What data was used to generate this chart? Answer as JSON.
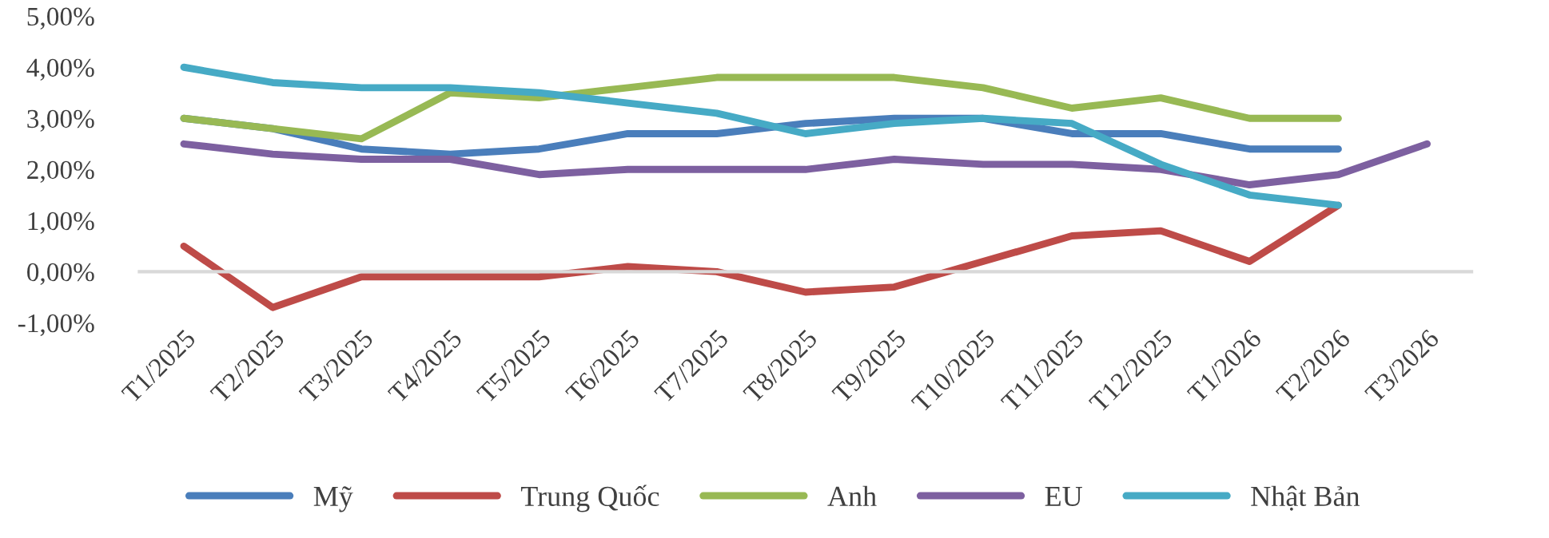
{
  "chart_data": {
    "type": "line",
    "categories": [
      "T1/2025",
      "T2/2025",
      "T3/2025",
      "T4/2025",
      "T5/2025",
      "T6/2025",
      "T7/2025",
      "T8/2025",
      "T9/2025",
      "T10/2025",
      "T11/2025",
      "T12/2025",
      "T1/2026",
      "T2/2026",
      "T3/2026"
    ],
    "series": [
      {
        "name": "Mỹ",
        "color": "#4a7ebb",
        "values": [
          3.0,
          2.8,
          2.4,
          2.3,
          2.4,
          2.7,
          2.7,
          2.9,
          3.0,
          3.0,
          2.7,
          2.7,
          2.4,
          2.4,
          null
        ]
      },
      {
        "name": "Trung Quốc",
        "color": "#be4b48",
        "values": [
          0.5,
          -0.7,
          -0.1,
          -0.1,
          -0.1,
          0.1,
          0.0,
          -0.4,
          -0.3,
          0.2,
          0.7,
          0.8,
          0.2,
          1.3,
          null
        ]
      },
      {
        "name": "Anh",
        "color": "#98b954",
        "values": [
          3.0,
          2.8,
          2.6,
          3.5,
          3.4,
          3.6,
          3.8,
          3.8,
          3.8,
          3.6,
          3.2,
          3.4,
          3.0,
          3.0,
          null
        ]
      },
      {
        "name": "EU",
        "color": "#7d60a0",
        "values": [
          2.5,
          2.3,
          2.2,
          2.2,
          1.9,
          2.0,
          2.0,
          2.0,
          2.2,
          2.1,
          2.1,
          2.0,
          1.7,
          1.9,
          2.5
        ]
      },
      {
        "name": "Nhật Bản",
        "color": "#46aac5",
        "values": [
          4.0,
          3.7,
          3.6,
          3.6,
          3.5,
          3.3,
          3.1,
          2.7,
          2.9,
          3.0,
          2.9,
          2.1,
          1.5,
          1.3,
          null
        ]
      }
    ],
    "ylim": [
      -1,
      5
    ],
    "yticks": [
      {
        "value": -1,
        "label": "-1,00%"
      },
      {
        "value": 0,
        "label": "0,00%"
      },
      {
        "value": 1,
        "label": "1,00%"
      },
      {
        "value": 2,
        "label": "2,00%"
      },
      {
        "value": 3,
        "label": "3,00%"
      },
      {
        "value": 4,
        "label": "4,00%"
      },
      {
        "value": 5,
        "label": "5,00%"
      }
    ],
    "grid": false,
    "legend": "bottom",
    "marker": "none",
    "line_style": "solid"
  }
}
